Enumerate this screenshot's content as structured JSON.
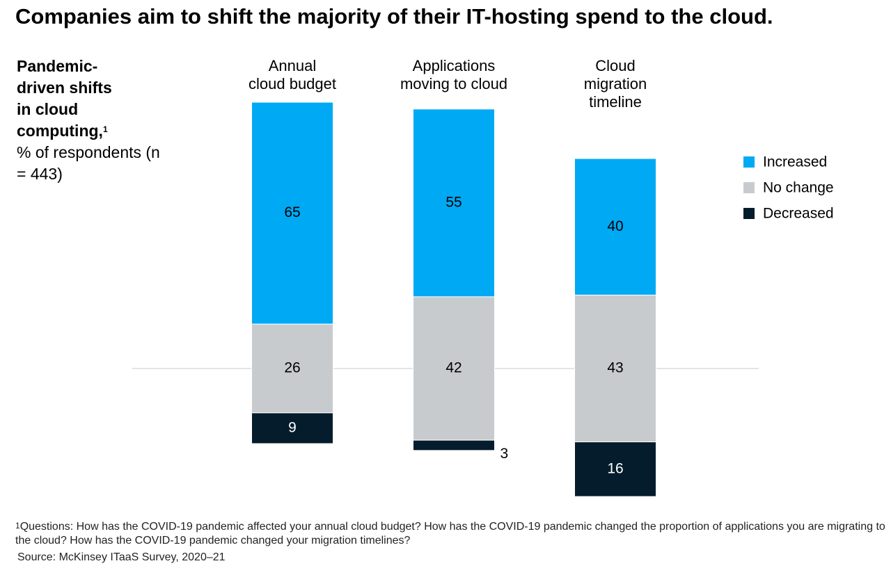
{
  "chart_data": {
    "type": "bar",
    "title": "Companies aim to shift the majority of their IT-hosting spend to the cloud.",
    "subtitle": "Pandemic-driven shifts in cloud computing,",
    "subtitle_note": "1",
    "unit_label": "% of respondents (n = 443)",
    "categories": [
      "Annual\ncloud budget",
      "Applications\nmoving to cloud",
      "Cloud\nmigration\ntimeline"
    ],
    "series": [
      {
        "name": "Increased",
        "color": "#00a9f4",
        "values": [
          65,
          55,
          40
        ]
      },
      {
        "name": "No change",
        "color": "#c8cbce",
        "values": [
          26,
          42,
          43
        ]
      },
      {
        "name": "Decreased",
        "color": "#051c2c",
        "values": [
          9,
          3,
          16
        ]
      }
    ],
    "legend": "right",
    "footnote_mark": "1",
    "footnote": "Questions: How has the COVID-19 pandemic affected your annual cloud budget? How has the COVID-19 pandemic changed the proportion of applications you are migrating to the cloud? How has the COVID-19 pandemic changed your migration timelines?",
    "source": "Source: McKinsey ITaaS Survey, 2020–21"
  }
}
